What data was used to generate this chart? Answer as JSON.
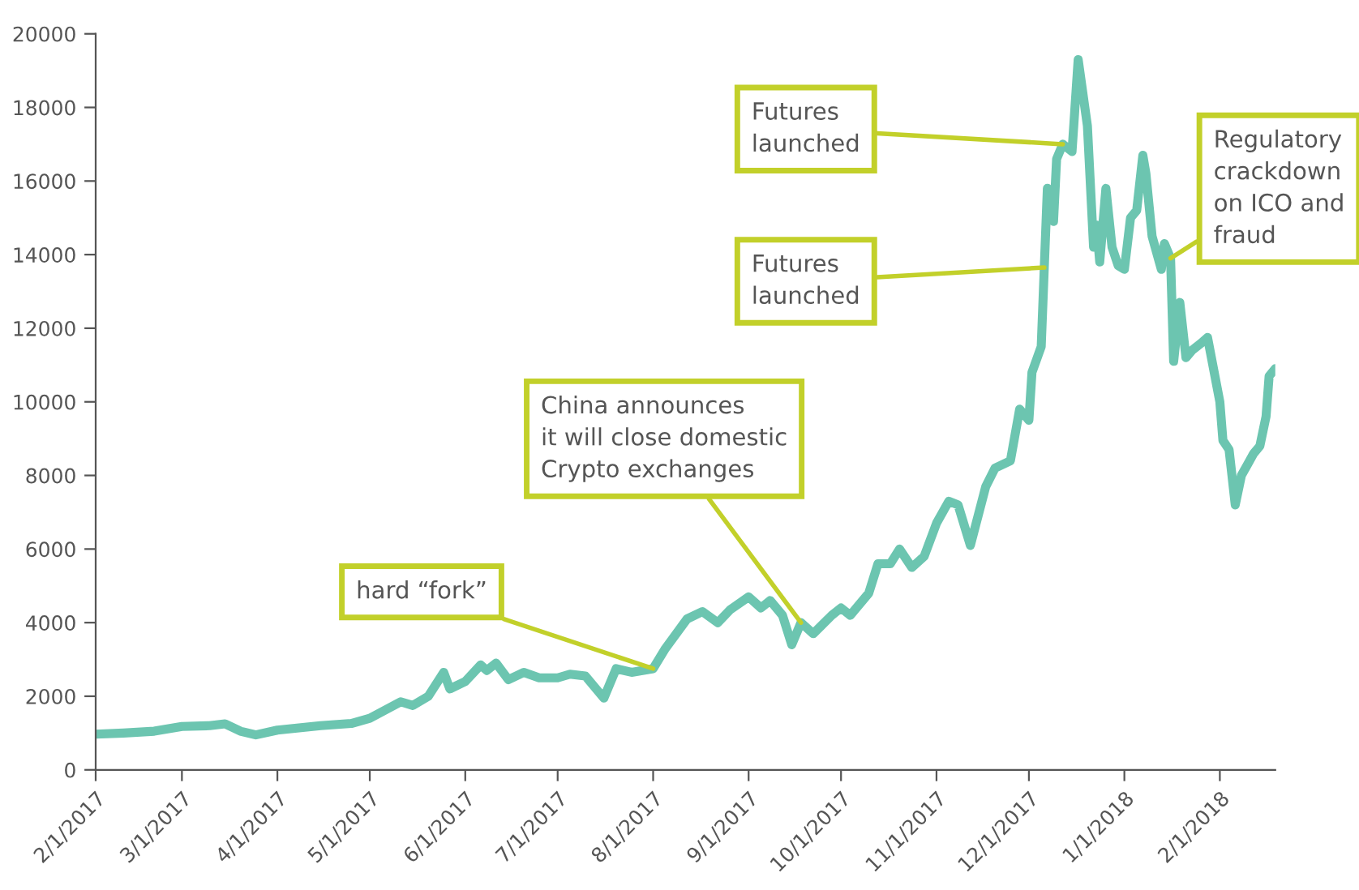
{
  "chart_data": {
    "type": "line",
    "x": [
      "2017-02-01",
      "2017-02-10",
      "2017-02-20",
      "2017-03-01",
      "2017-03-10",
      "2017-03-15",
      "2017-03-20",
      "2017-03-25",
      "2017-04-01",
      "2017-04-15",
      "2017-04-25",
      "2017-05-01",
      "2017-05-11",
      "2017-05-15",
      "2017-05-20",
      "2017-05-25",
      "2017-05-27",
      "2017-06-01",
      "2017-06-06",
      "2017-06-08",
      "2017-06-11",
      "2017-06-15",
      "2017-06-20",
      "2017-06-25",
      "2017-07-01",
      "2017-07-05",
      "2017-07-10",
      "2017-07-16",
      "2017-07-20",
      "2017-07-25",
      "2017-08-01",
      "2017-08-05",
      "2017-08-12",
      "2017-08-17",
      "2017-08-22",
      "2017-08-26",
      "2017-09-01",
      "2017-09-05",
      "2017-09-08",
      "2017-09-12",
      "2017-09-15",
      "2017-09-18",
      "2017-09-22",
      "2017-09-28",
      "2017-10-01",
      "2017-10-04",
      "2017-10-10",
      "2017-10-13",
      "2017-10-17",
      "2017-10-20",
      "2017-10-24",
      "2017-10-28",
      "2017-11-01",
      "2017-11-05",
      "2017-11-08",
      "2017-11-12",
      "2017-11-17",
      "2017-11-20",
      "2017-11-25",
      "2017-11-28",
      "2017-12-01",
      "2017-12-02",
      "2017-12-05",
      "2017-12-07",
      "2017-12-09",
      "2017-12-10",
      "2017-12-12",
      "2017-12-15",
      "2017-12-17",
      "2017-12-20",
      "2017-12-22",
      "2017-12-23",
      "2017-12-24",
      "2017-12-26",
      "2017-12-28",
      "2017-12-30",
      "2018-01-01",
      "2018-01-03",
      "2018-01-05",
      "2018-01-07",
      "2018-01-08",
      "2018-01-10",
      "2018-01-13",
      "2018-01-14",
      "2018-01-16",
      "2018-01-17",
      "2018-01-19",
      "2018-01-21",
      "2018-01-23",
      "2018-01-26",
      "2018-01-28",
      "2018-02-01",
      "2018-02-02",
      "2018-02-04",
      "2018-02-06",
      "2018-02-08",
      "2018-02-10",
      "2018-02-12",
      "2018-02-14",
      "2018-02-16",
      "2018-02-17",
      "2018-02-19"
    ],
    "series": [
      {
        "color": "#6cc5b0",
        "values": [
          970,
          1000,
          1050,
          1180,
          1200,
          1250,
          1050,
          950,
          1080,
          1200,
          1260,
          1400,
          1850,
          1750,
          2000,
          2650,
          2200,
          2400,
          2850,
          2700,
          2900,
          2450,
          2650,
          2500,
          2500,
          2600,
          2550,
          1950,
          2750,
          2650,
          2750,
          3300,
          4100,
          4300,
          4000,
          4350,
          4700,
          4400,
          4600,
          4200,
          3400,
          4000,
          3700,
          4200,
          4400,
          4200,
          4800,
          5600,
          5600,
          6000,
          5500,
          5800,
          6700,
          7300,
          7200,
          6100,
          7700,
          8200,
          8400,
          9800,
          9500,
          10800,
          11500,
          15800,
          14900,
          16600,
          17000,
          16800,
          19300,
          17500,
          14200,
          14800,
          13800,
          15800,
          14200,
          13700,
          13600,
          15000,
          15200,
          16700,
          16200,
          14500,
          13600,
          14300,
          13900,
          11100,
          12700,
          11200,
          11400,
          11600,
          11750,
          10000,
          8950,
          8700,
          7200,
          8000,
          8300,
          8600,
          8800,
          9600,
          10700,
          10900
        ]
      }
    ],
    "xlim": [
      "2017-02-01",
      "2018-02-19"
    ],
    "xticks": [
      {
        "value": "2017-02-01",
        "label": "2/1/2017"
      },
      {
        "value": "2017-03-01",
        "label": "3/1/2017"
      },
      {
        "value": "2017-04-01",
        "label": "4/1/2017"
      },
      {
        "value": "2017-05-01",
        "label": "5/1/2017"
      },
      {
        "value": "2017-06-01",
        "label": "6/1/2017"
      },
      {
        "value": "2017-07-01",
        "label": "7/1/2017"
      },
      {
        "value": "2017-08-01",
        "label": "8/1/2017"
      },
      {
        "value": "2017-09-01",
        "label": "9/1/2017"
      },
      {
        "value": "2017-10-01",
        "label": "10/1/2017"
      },
      {
        "value": "2017-11-01",
        "label": "11/1/2017"
      },
      {
        "value": "2017-12-01",
        "label": "12/1/2017"
      },
      {
        "value": "2018-01-01",
        "label": "1/1/2018"
      },
      {
        "value": "2018-02-01",
        "label": "2/1/2018"
      }
    ],
    "ylim": [
      0,
      20000
    ],
    "yticks": [
      0,
      2000,
      4000,
      6000,
      8000,
      10000,
      12000,
      14000,
      16000,
      18000,
      20000
    ],
    "grid": false,
    "legend": false,
    "marker": "none",
    "line_style": "solid",
    "annotations": [
      {
        "text": "hard “fork”",
        "x": "2017-08-01",
        "y": 2750
      },
      {
        "text": "China announces\nit will close domestic\nCrypto exchanges",
        "x": "2017-09-18",
        "y": 4000
      },
      {
        "text": "Futures\nlaunched",
        "x": "2017-12-12",
        "y": 17000
      },
      {
        "text": "Futures\nlaunched",
        "x": "2017-12-06",
        "y": 13650
      },
      {
        "text": "Regulatory\ncrackdown\non ICO and\nfraud",
        "x": "2018-01-16",
        "y": 13900
      }
    ]
  }
}
